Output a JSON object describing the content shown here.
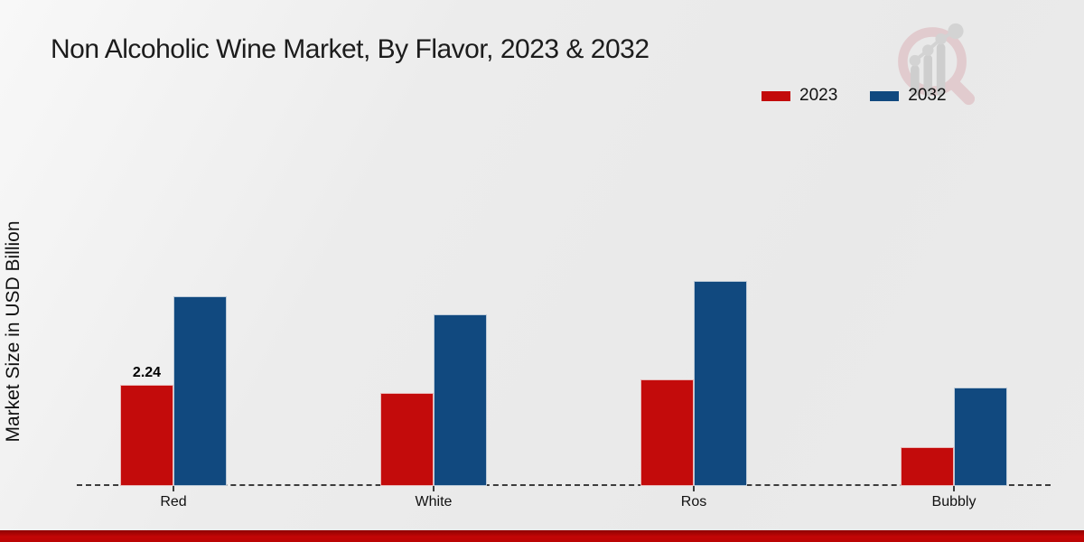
{
  "title": "Non Alcoholic Wine Market, By Flavor, 2023 & 2032",
  "y_axis_label": "Market Size in USD Billion",
  "legend": {
    "items": [
      {
        "label": "2023",
        "color": "#c30b0b"
      },
      {
        "label": "2032",
        "color": "#11497f"
      }
    ]
  },
  "watermark_icon": "magnifier-bar-chart-logo",
  "colors": {
    "series_2023": "#c30b0b",
    "series_2032": "#11497f",
    "background": "#ebebeb",
    "footer_red": "#c30606",
    "axis_dash": "#3c3c3c"
  },
  "chart_data": {
    "type": "bar",
    "title": "Non Alcoholic Wine Market, By Flavor, 2023 & 2032",
    "xlabel": "",
    "ylabel": "Market Size in USD Billion",
    "categories": [
      "Red",
      "White",
      "Ros",
      "Bubbly"
    ],
    "series": [
      {
        "name": "2023",
        "color": "#c30b0b",
        "values": [
          2.24,
          2.06,
          2.36,
          0.86
        ]
      },
      {
        "name": "2032",
        "color": "#11497f",
        "values": [
          4.2,
          3.8,
          4.54,
          2.18
        ]
      }
    ],
    "point_labels": [
      {
        "series_index": 0,
        "category_index": 0,
        "text": "2.24"
      }
    ],
    "ylim": [
      0,
      5.6
    ],
    "grid": false,
    "y_ticks_visible": false,
    "baseline_style": "dashed",
    "legend_position": "top-right"
  }
}
